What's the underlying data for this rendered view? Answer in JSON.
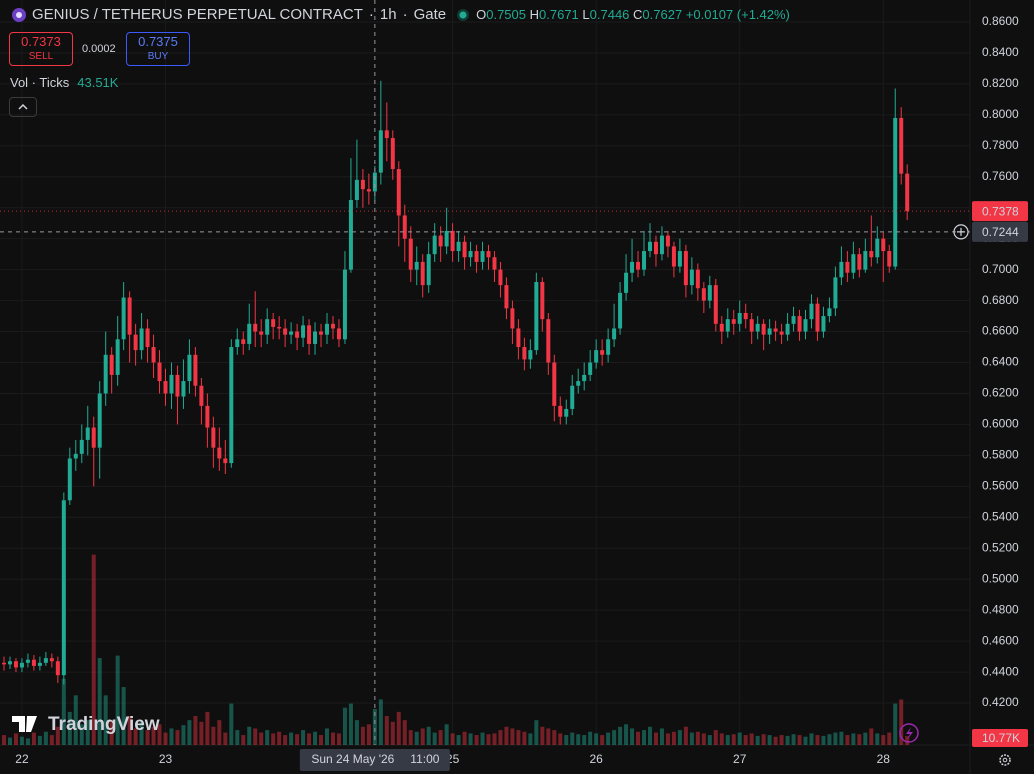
{
  "chart_data": {
    "type": "candlestick",
    "symbol": "GENIUS / TETHERUS PERPETUAL CONTRACT",
    "interval": "1h",
    "exchange": "Gate",
    "separator": "·",
    "ohlc_letters": [
      "O",
      "H",
      "L",
      "C"
    ],
    "change": "+0.0107 (+1.42%)",
    "sell": {
      "price": 0.7373,
      "label": "SELL"
    },
    "spread": 0.0002,
    "buy": {
      "price": 0.7375,
      "label": "BUY"
    },
    "volume_title": "Vol · Ticks",
    "branding": "TradingView",
    "up_color": "#22ab94",
    "down_color": "#f23645",
    "grid": true,
    "x": [
      -3,
      -2,
      -1,
      0,
      1,
      2,
      3,
      4,
      5,
      6,
      7,
      8,
      9,
      10,
      11,
      12,
      13,
      14,
      15,
      16,
      17,
      18,
      19,
      20,
      21,
      22,
      23,
      24,
      25,
      26,
      27,
      28,
      29,
      30,
      31,
      32,
      33,
      34,
      35,
      36,
      37,
      38,
      39,
      40,
      41,
      42,
      43,
      44,
      45,
      46,
      47,
      48,
      49,
      50,
      51,
      52,
      53,
      54,
      55,
      56,
      57,
      58,
      59,
      60,
      61,
      62,
      63,
      64,
      65,
      66,
      67,
      68,
      69,
      70,
      71,
      72,
      73,
      74,
      75,
      76,
      77,
      78,
      79,
      80,
      81,
      82,
      83,
      84,
      85,
      86,
      87,
      88,
      89,
      90,
      91,
      92,
      93,
      94,
      95,
      96,
      97,
      98,
      99,
      100,
      101,
      102,
      103,
      104,
      105,
      106,
      107,
      108,
      109,
      110,
      111,
      112,
      113,
      114,
      115,
      116,
      117,
      118,
      119,
      120,
      121,
      122,
      123,
      124,
      125,
      126,
      127,
      128,
      129,
      130,
      131,
      132,
      133,
      134,
      135,
      136,
      137,
      138,
      139,
      140,
      141,
      142,
      143,
      144,
      145,
      146,
      147,
      148
    ],
    "open": [
      0.446,
      0.445,
      0.447,
      0.443,
      0.446,
      0.448,
      0.444,
      0.446,
      0.449,
      0.447,
      0.438,
      0.551,
      0.578,
      0.581,
      0.59,
      0.598,
      0.585,
      0.62,
      0.645,
      0.632,
      0.655,
      0.682,
      0.658,
      0.648,
      0.662,
      0.65,
      0.64,
      0.628,
      0.62,
      0.632,
      0.618,
      0.628,
      0.645,
      0.625,
      0.612,
      0.598,
      0.585,
      0.578,
      0.575,
      0.65,
      0.655,
      0.652,
      0.665,
      0.66,
      0.658,
      0.668,
      0.663,
      0.662,
      0.658,
      0.66,
      0.656,
      0.664,
      0.652,
      0.66,
      0.658,
      0.665,
      0.662,
      0.655,
      0.7,
      0.745,
      0.758,
      0.752,
      0.7505,
      0.7627,
      0.79,
      0.785,
      0.765,
      0.735,
      0.72,
      0.7,
      0.705,
      0.69,
      0.71,
      0.722,
      0.715,
      0.725,
      0.712,
      0.718,
      0.708,
      0.712,
      0.705,
      0.712,
      0.708,
      0.7,
      0.69,
      0.675,
      0.662,
      0.65,
      0.642,
      0.648,
      0.692,
      0.668,
      0.64,
      0.612,
      0.605,
      0.61,
      0.625,
      0.628,
      0.632,
      0.64,
      0.648,
      0.645,
      0.655,
      0.662,
      0.685,
      0.698,
      0.705,
      0.7,
      0.712,
      0.718,
      0.71,
      0.722,
      0.715,
      0.702,
      0.712,
      0.69,
      0.7,
      0.688,
      0.68,
      0.69,
      0.665,
      0.66,
      0.668,
      0.665,
      0.672,
      0.668,
      0.66,
      0.665,
      0.658,
      0.662,
      0.66,
      0.658,
      0.665,
      0.67,
      0.66,
      0.668,
      0.678,
      0.66,
      0.67,
      0.675,
      0.695,
      0.705,
      0.698,
      0.71,
      0.7,
      0.712,
      0.708,
      0.72,
      0.712,
      0.702,
      0.798,
      0.762
    ],
    "high": [
      0.45,
      0.45,
      0.449,
      0.449,
      0.452,
      0.451,
      0.45,
      0.453,
      0.452,
      0.45,
      0.556,
      0.585,
      0.59,
      0.6,
      0.612,
      0.605,
      0.628,
      0.66,
      0.65,
      0.67,
      0.692,
      0.686,
      0.665,
      0.672,
      0.668,
      0.658,
      0.648,
      0.636,
      0.64,
      0.638,
      0.642,
      0.655,
      0.65,
      0.63,
      0.62,
      0.605,
      0.598,
      0.59,
      0.655,
      0.662,
      0.66,
      0.678,
      0.686,
      0.668,
      0.675,
      0.672,
      0.67,
      0.668,
      0.666,
      0.665,
      0.67,
      0.668,
      0.666,
      0.665,
      0.672,
      0.67,
      0.668,
      0.712,
      0.772,
      0.784,
      0.765,
      0.762,
      0.7671,
      0.822,
      0.808,
      0.79,
      0.77,
      0.742,
      0.728,
      0.715,
      0.71,
      0.718,
      0.73,
      0.728,
      0.74,
      0.73,
      0.725,
      0.722,
      0.718,
      0.716,
      0.718,
      0.716,
      0.712,
      0.705,
      0.695,
      0.68,
      0.668,
      0.656,
      0.655,
      0.698,
      0.695,
      0.672,
      0.645,
      0.618,
      0.616,
      0.632,
      0.636,
      0.64,
      0.648,
      0.655,
      0.655,
      0.662,
      0.678,
      0.692,
      0.71,
      0.72,
      0.712,
      0.725,
      0.73,
      0.722,
      0.728,
      0.725,
      0.718,
      0.72,
      0.716,
      0.708,
      0.704,
      0.692,
      0.696,
      0.694,
      0.67,
      0.675,
      0.674,
      0.68,
      0.678,
      0.672,
      0.67,
      0.668,
      0.668,
      0.667,
      0.665,
      0.672,
      0.676,
      0.674,
      0.674,
      0.684,
      0.682,
      0.676,
      0.682,
      0.702,
      0.715,
      0.712,
      0.718,
      0.714,
      0.72,
      0.735,
      0.728,
      0.724,
      0.716,
      0.817,
      0.805,
      0.768
    ],
    "low": [
      0.441,
      0.442,
      0.44,
      0.44,
      0.443,
      0.441,
      0.441,
      0.444,
      0.443,
      0.433,
      0.432,
      0.548,
      0.57,
      0.575,
      0.58,
      0.56,
      0.565,
      0.612,
      0.62,
      0.625,
      0.648,
      0.64,
      0.638,
      0.642,
      0.64,
      0.63,
      0.62,
      0.612,
      0.61,
      0.6,
      0.61,
      0.62,
      0.618,
      0.6,
      0.585,
      0.572,
      0.57,
      0.568,
      0.572,
      0.645,
      0.645,
      0.648,
      0.65,
      0.65,
      0.652,
      0.655,
      0.655,
      0.65,
      0.652,
      0.648,
      0.65,
      0.645,
      0.645,
      0.65,
      0.652,
      0.655,
      0.65,
      0.652,
      0.698,
      0.74,
      0.74,
      0.742,
      0.7446,
      0.755,
      0.77,
      0.758,
      0.715,
      0.705,
      0.692,
      0.69,
      0.682,
      0.685,
      0.705,
      0.705,
      0.71,
      0.705,
      0.705,
      0.7,
      0.702,
      0.698,
      0.7,
      0.7,
      0.692,
      0.682,
      0.668,
      0.652,
      0.642,
      0.635,
      0.636,
      0.645,
      0.66,
      0.632,
      0.602,
      0.6,
      0.6,
      0.606,
      0.62,
      0.622,
      0.628,
      0.636,
      0.638,
      0.64,
      0.65,
      0.658,
      0.68,
      0.692,
      0.695,
      0.696,
      0.708,
      0.702,
      0.706,
      0.708,
      0.695,
      0.698,
      0.682,
      0.684,
      0.68,
      0.672,
      0.675,
      0.66,
      0.652,
      0.656,
      0.658,
      0.66,
      0.662,
      0.652,
      0.655,
      0.648,
      0.652,
      0.654,
      0.652,
      0.654,
      0.66,
      0.654,
      0.655,
      0.662,
      0.654,
      0.656,
      0.666,
      0.67,
      0.69,
      0.692,
      0.694,
      0.695,
      0.698,
      0.702,
      0.704,
      0.692,
      0.698,
      0.7,
      0.755,
      0.732
    ],
    "close": [
      0.445,
      0.447,
      0.443,
      0.446,
      0.448,
      0.444,
      0.446,
      0.449,
      0.447,
      0.438,
      0.551,
      0.578,
      0.581,
      0.59,
      0.598,
      0.585,
      0.62,
      0.645,
      0.632,
      0.655,
      0.682,
      0.658,
      0.648,
      0.662,
      0.65,
      0.64,
      0.628,
      0.62,
      0.632,
      0.618,
      0.628,
      0.645,
      0.625,
      0.612,
      0.598,
      0.585,
      0.578,
      0.575,
      0.65,
      0.655,
      0.652,
      0.665,
      0.66,
      0.658,
      0.668,
      0.663,
      0.662,
      0.658,
      0.66,
      0.656,
      0.664,
      0.652,
      0.66,
      0.658,
      0.665,
      0.662,
      0.655,
      0.7,
      0.745,
      0.758,
      0.752,
      0.7505,
      0.7627,
      0.79,
      0.785,
      0.765,
      0.735,
      0.72,
      0.7,
      0.705,
      0.69,
      0.71,
      0.722,
      0.715,
      0.725,
      0.712,
      0.718,
      0.708,
      0.712,
      0.705,
      0.712,
      0.708,
      0.7,
      0.69,
      0.675,
      0.662,
      0.65,
      0.642,
      0.648,
      0.692,
      0.668,
      0.64,
      0.612,
      0.605,
      0.61,
      0.625,
      0.628,
      0.632,
      0.64,
      0.648,
      0.645,
      0.655,
      0.662,
      0.685,
      0.698,
      0.705,
      0.7,
      0.712,
      0.718,
      0.71,
      0.722,
      0.715,
      0.702,
      0.712,
      0.69,
      0.7,
      0.688,
      0.68,
      0.69,
      0.665,
      0.66,
      0.668,
      0.665,
      0.672,
      0.668,
      0.66,
      0.665,
      0.658,
      0.662,
      0.66,
      0.658,
      0.665,
      0.67,
      0.66,
      0.668,
      0.678,
      0.66,
      0.67,
      0.675,
      0.695,
      0.705,
      0.698,
      0.71,
      0.7,
      0.712,
      0.708,
      0.72,
      0.712,
      0.702,
      0.798,
      0.762,
      0.7378
    ],
    "volume": [
      12000,
      9000,
      14000,
      10000,
      8000,
      15000,
      11000,
      16000,
      12000,
      22000,
      80000,
      40000,
      60000,
      25000,
      30000,
      230000,
      105000,
      60000,
      30000,
      108000,
      70000,
      35000,
      20000,
      28000,
      18000,
      22000,
      25000,
      15000,
      20000,
      18000,
      24000,
      30000,
      35000,
      28000,
      40000,
      22000,
      30000,
      15000,
      50000,
      18000,
      12000,
      22000,
      20000,
      15000,
      18000,
      14000,
      16000,
      12000,
      15000,
      13000,
      18000,
      14000,
      16000,
      12000,
      20000,
      15000,
      14000,
      45000,
      50000,
      30000,
      22000,
      25000,
      43510,
      55000,
      35000,
      28000,
      40000,
      30000,
      18000,
      16000,
      20000,
      22000,
      15000,
      18000,
      25000,
      14000,
      12000,
      16000,
      14000,
      12000,
      15000,
      13000,
      14000,
      18000,
      22000,
      20000,
      18000,
      16000,
      14000,
      30000,
      22000,
      20000,
      18000,
      14000,
      12000,
      15000,
      13000,
      12000,
      16000,
      14000,
      12000,
      15000,
      18000,
      22000,
      25000,
      20000,
      16000,
      18000,
      22000,
      15000,
      20000,
      14000,
      16000,
      18000,
      22000,
      15000,
      16000,
      14000,
      12000,
      18000,
      14000,
      12000,
      13000,
      15000,
      12000,
      14000,
      11000,
      13000,
      12000,
      10000,
      12000,
      11000,
      13000,
      12000,
      10000,
      14000,
      12000,
      11000,
      13000,
      15000,
      16000,
      12000,
      14000,
      13000,
      15000,
      20000,
      14000,
      12000,
      15000,
      50000,
      55000,
      10770
    ],
    "last_volume_label": "10.77K",
    "xlim": [
      -3.67,
      158.5
    ],
    "xticks": [
      {
        "value": 0,
        "label": "22"
      },
      {
        "value": 24,
        "label": "23"
      },
      {
        "value": 72,
        "label": "25"
      },
      {
        "value": 96,
        "label": "26"
      },
      {
        "value": 120,
        "label": "27"
      },
      {
        "value": 144,
        "label": "28"
      }
    ],
    "ylim": [
      0.3929,
      0.8742
    ],
    "yticks": [
      {
        "value": 0.42,
        "label": "0.4200"
      },
      {
        "value": 0.44,
        "label": "0.4400"
      },
      {
        "value": 0.46,
        "label": "0.4600"
      },
      {
        "value": 0.48,
        "label": "0.4800"
      },
      {
        "value": 0.5,
        "label": "0.5000"
      },
      {
        "value": 0.52,
        "label": "0.5200"
      },
      {
        "value": 0.54,
        "label": "0.5400"
      },
      {
        "value": 0.56,
        "label": "0.5600"
      },
      {
        "value": 0.58,
        "label": "0.5800"
      },
      {
        "value": 0.6,
        "label": "0.6000"
      },
      {
        "value": 0.62,
        "label": "0.6200"
      },
      {
        "value": 0.64,
        "label": "0.6400"
      },
      {
        "value": 0.66,
        "label": "0.6600"
      },
      {
        "value": 0.68,
        "label": "0.6800"
      },
      {
        "value": 0.7,
        "label": "0.7000"
      },
      {
        "value": 0.72,
        "label": "0.7200"
      },
      {
        "value": 0.74,
        "label": "0.7400"
      },
      {
        "value": 0.76,
        "label": "0.7600"
      },
      {
        "value": 0.78,
        "label": "0.7800"
      },
      {
        "value": 0.8,
        "label": "0.8000"
      },
      {
        "value": 0.82,
        "label": "0.8200"
      },
      {
        "value": 0.84,
        "label": "0.8400"
      },
      {
        "value": 0.86,
        "label": "0.8600"
      }
    ],
    "volume_ylim": [
      0,
      900000
    ],
    "crosshair": {
      "x": 59,
      "price": 0.7244,
      "date_label": "Sun 24 May '26",
      "time_label": "11:00",
      "volume_label": "43.51K"
    }
  }
}
